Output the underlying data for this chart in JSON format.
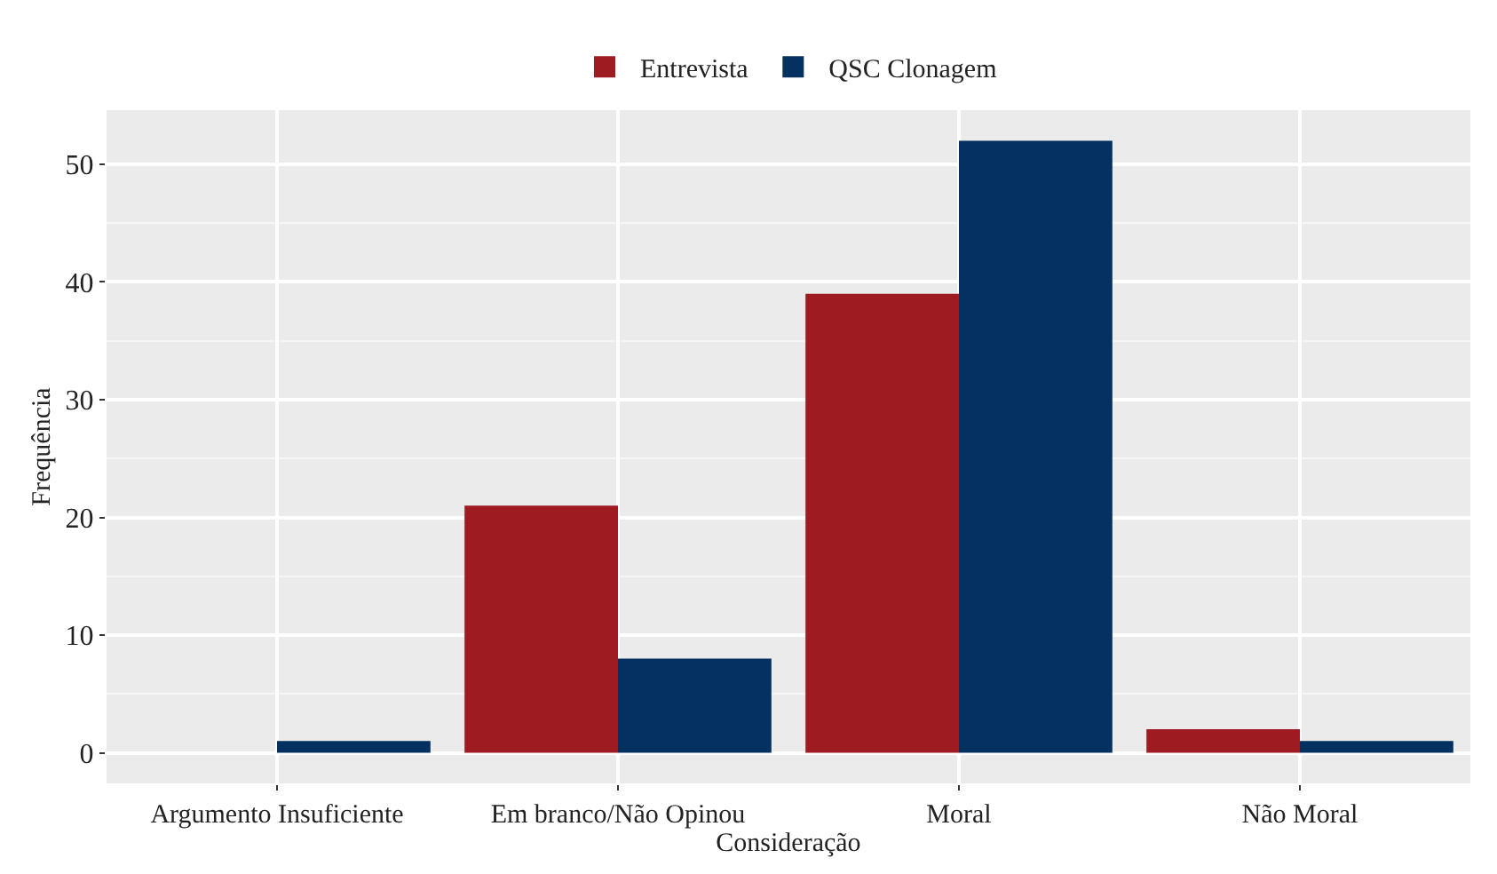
{
  "chart_data": {
    "type": "bar",
    "xlabel": "Consideração",
    "ylabel": "Frequência",
    "categories": [
      "Argumento Insuficiente",
      "Em branco/Não Opinou",
      "Moral",
      "Não Moral"
    ],
    "series": [
      {
        "name": "Entrevista",
        "color": "#9e1b22",
        "values": [
          0,
          21,
          39,
          2
        ]
      },
      {
        "name": "QSC Clonagem",
        "color": "#04315f",
        "values": [
          1,
          8,
          52,
          1
        ]
      }
    ],
    "ylim": [
      -2.6,
      54.6
    ],
    "yticks": [
      0,
      10,
      20,
      30,
      40,
      50
    ],
    "grid": true,
    "legend": "top"
  }
}
